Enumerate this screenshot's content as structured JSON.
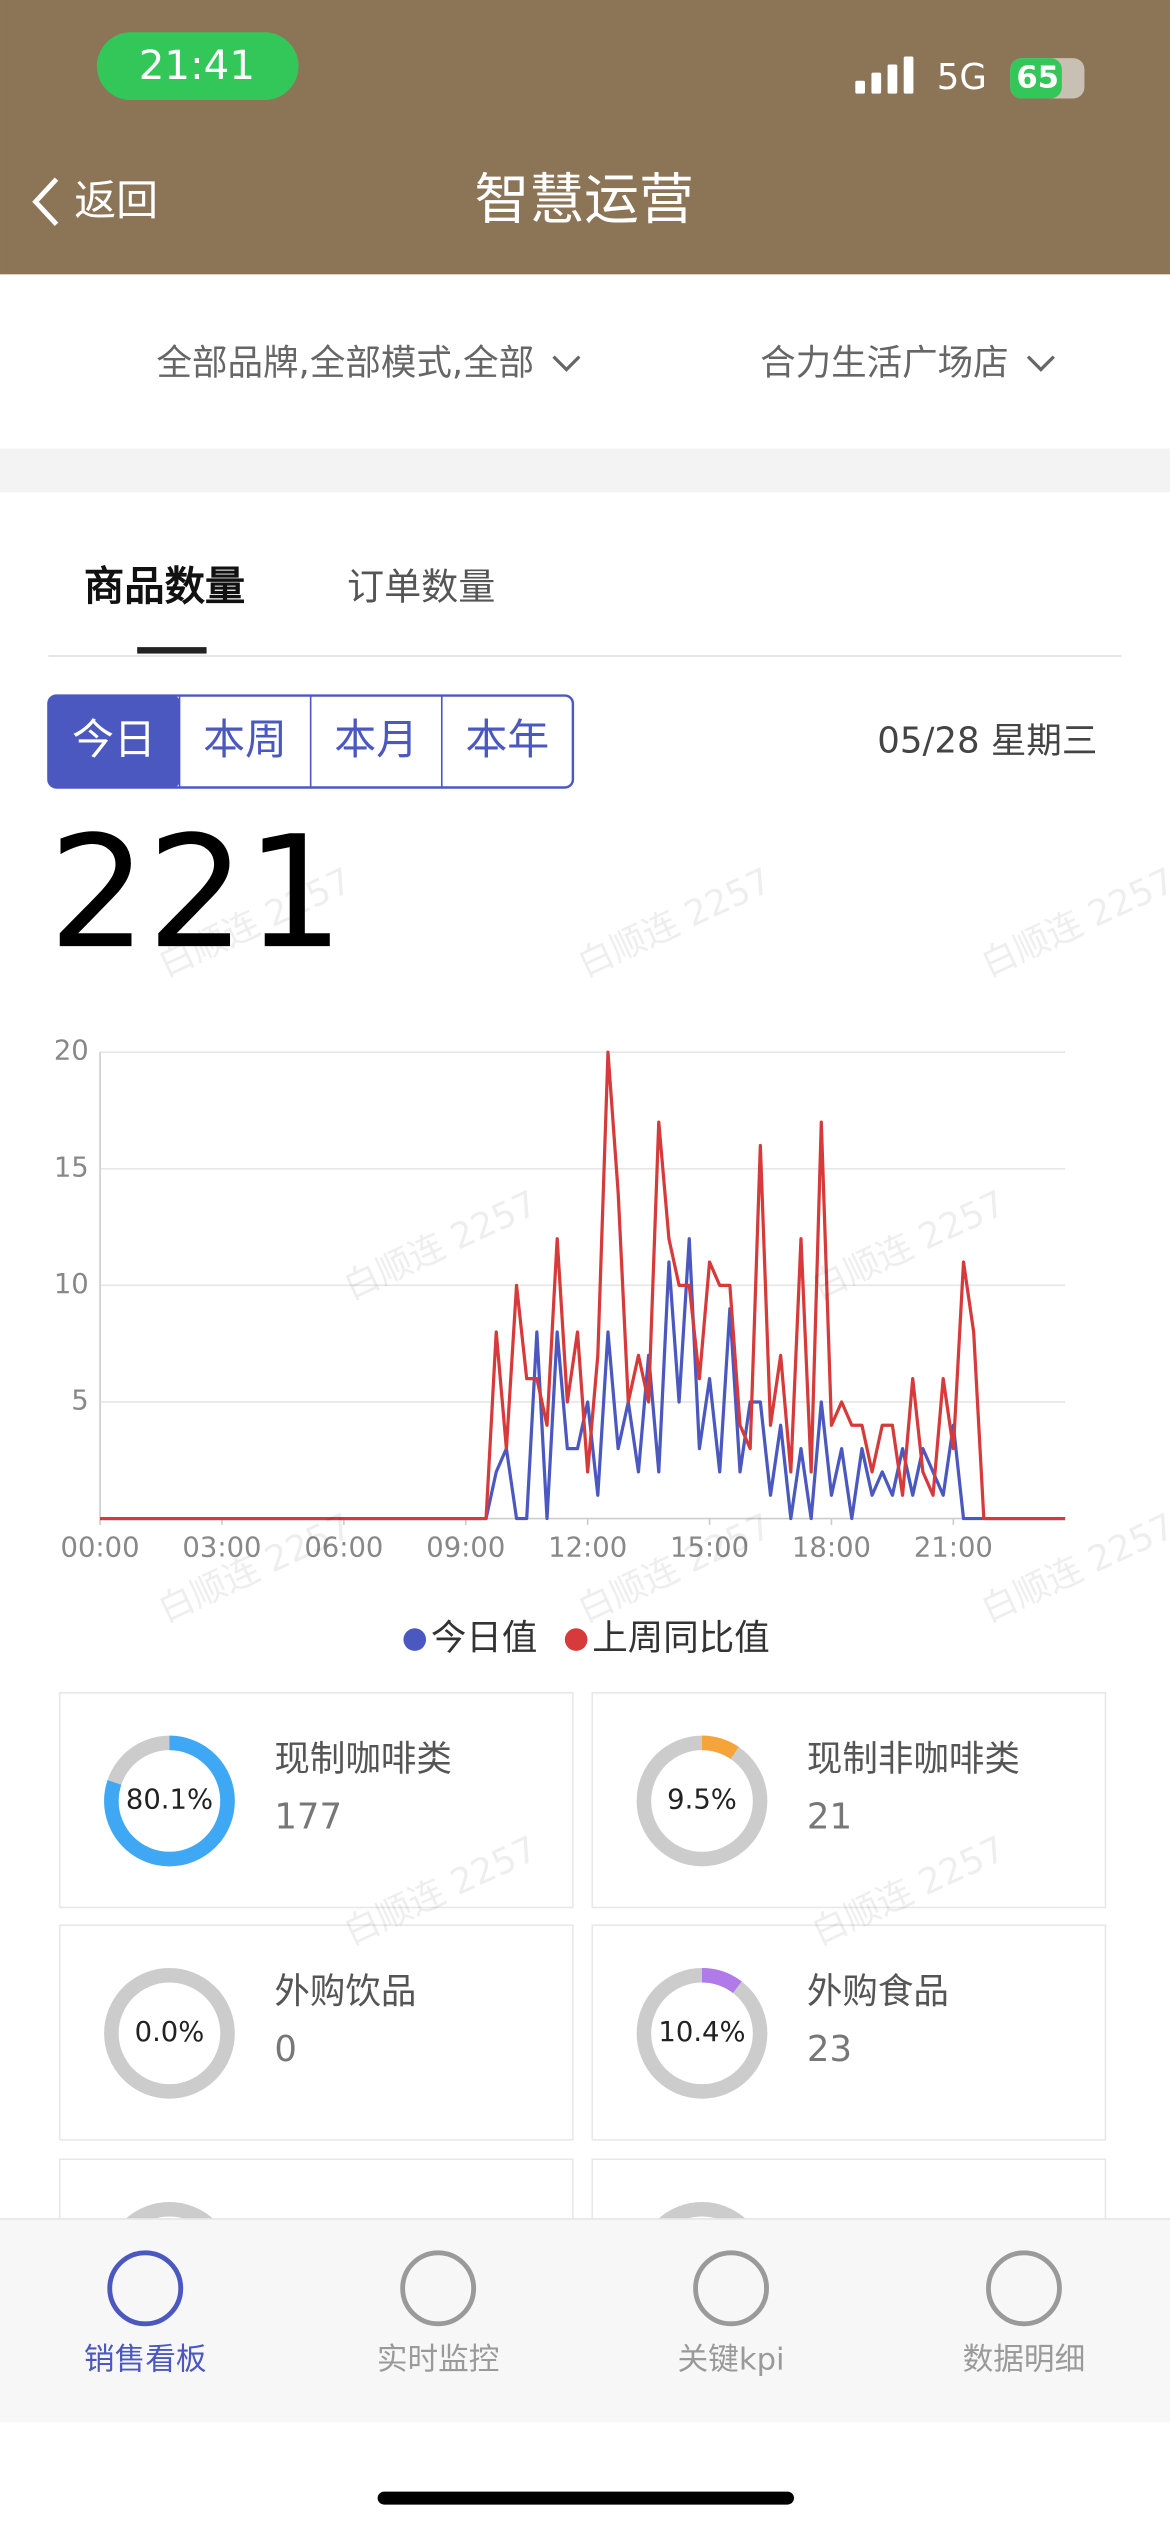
{
  "status_bar": {
    "time": "21:41",
    "network": "5G",
    "battery": "65"
  },
  "header": {
    "back": "返回",
    "title": "智慧运营"
  },
  "filters": [
    "全部品牌,全部模式,全部",
    "合力生活广场店"
  ],
  "tabs": [
    "商品数量",
    "订单数量"
  ],
  "periods": [
    "今日",
    "本周",
    "本月",
    "本年"
  ],
  "date": "05/28 星期三",
  "total": 221,
  "chart_data": {
    "type": "line",
    "x": [
      0,
      9.5,
      9.75,
      10,
      10.25,
      10.5,
      10.75,
      11,
      11.25,
      11.5,
      11.75,
      12,
      12.25,
      12.5,
      12.75,
      13,
      13.25,
      13.5,
      13.75,
      14,
      14.25,
      14.5,
      14.75,
      15,
      15.25,
      15.5,
      15.75,
      16,
      16.25,
      16.5,
      16.75,
      17,
      17.25,
      17.5,
      17.75,
      18,
      18.25,
      18.5,
      18.75,
      19,
      19.25,
      19.5,
      19.75,
      20,
      20.25,
      20.5,
      20.75,
      21,
      21.25,
      21.5,
      21.75,
      22,
      23.75
    ],
    "xlim": [
      0,
      23.75
    ],
    "xticks": [
      {
        "value": 0,
        "label": "00:00"
      },
      {
        "value": 3,
        "label": "03:00"
      },
      {
        "value": 6,
        "label": "06:00"
      },
      {
        "value": 9,
        "label": "09:00"
      },
      {
        "value": 12,
        "label": "12:00"
      },
      {
        "value": 15,
        "label": "15:00"
      },
      {
        "value": 18,
        "label": "18:00"
      },
      {
        "value": 21,
        "label": "21:00"
      }
    ],
    "ylim": [
      0,
      20
    ],
    "yticks": [
      5,
      10,
      15,
      20
    ],
    "grid": true,
    "series": [
      {
        "name": "今日值",
        "color": "#4a58c0",
        "values": [
          0,
          0,
          2,
          3,
          0,
          0,
          8,
          0,
          8,
          3,
          3,
          5,
          1,
          8,
          3,
          5,
          2,
          7,
          2,
          11,
          5,
          12,
          3,
          6,
          2,
          9,
          2,
          5,
          5,
          1,
          4,
          0,
          3,
          0,
          5,
          1,
          3,
          0,
          3,
          1,
          2,
          1,
          3,
          1,
          3,
          2,
          1,
          4,
          0,
          0,
          0,
          0,
          0
        ]
      },
      {
        "name": "上周同比值",
        "color": "#d63a3a",
        "values": [
          0,
          0,
          8,
          3,
          10,
          6,
          6,
          4,
          12,
          5,
          8,
          2,
          7,
          20,
          14,
          5,
          7,
          5,
          17,
          12,
          10,
          10,
          6,
          11,
          10,
          10,
          4,
          3,
          16,
          4,
          7,
          2,
          12,
          2,
          17,
          4,
          5,
          4,
          4,
          2,
          4,
          4,
          1,
          6,
          2,
          1,
          6,
          3,
          11,
          8,
          0,
          0,
          0
        ]
      }
    ]
  },
  "cards": [
    {
      "name": "现制咖啡类",
      "count": 177,
      "percent": 80.1,
      "percent_label": "80.1%",
      "color": "#3ea8f5"
    },
    {
      "name": "现制非咖啡类",
      "count": 21,
      "percent": 9.5,
      "percent_label": "9.5%",
      "color": "#f5a43a"
    },
    {
      "name": "外购饮品",
      "count": 0,
      "percent": 0.0,
      "percent_label": "0.0%",
      "color": "#9aa0a6"
    },
    {
      "name": "外购食品",
      "count": 23,
      "percent": 10.4,
      "percent_label": "10.4%",
      "color": "#b07ae8"
    }
  ],
  "nav": [
    "销售看板",
    "实时监控",
    "关键kpi",
    "数据明细"
  ],
  "watermark": "白顺连 2257"
}
